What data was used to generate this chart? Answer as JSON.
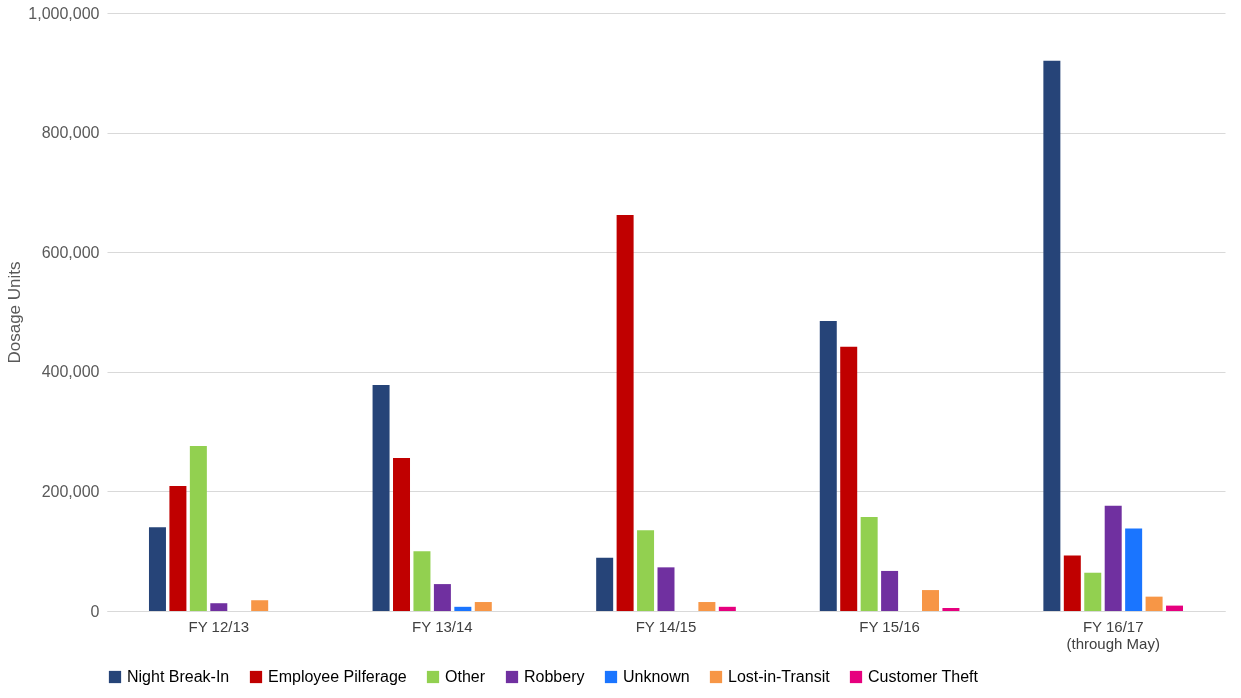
{
  "chart_data": {
    "type": "bar",
    "ylabel": "Dosage Units",
    "categories": [
      "FY 12/13",
      "FY 13/14",
      "FY 14/15",
      "FY 15/16",
      "FY 16/17\n(through May)"
    ],
    "series": [
      {
        "name": "Night Break-In",
        "color": "#264478",
        "values": [
          140000,
          378000,
          89000,
          485000,
          920000
        ]
      },
      {
        "name": "Employee Pilferage",
        "color": "#c00000",
        "values": [
          209000,
          256000,
          662000,
          442000,
          93000
        ]
      },
      {
        "name": "Other",
        "color": "#92d050",
        "values": [
          276000,
          100000,
          135000,
          157000,
          64000
        ]
      },
      {
        "name": "Robbery",
        "color": "#7030a0",
        "values": [
          13000,
          45000,
          73000,
          67000,
          176000
        ]
      },
      {
        "name": "Unknown",
        "color": "#1a75ff",
        "values": [
          null,
          7000,
          null,
          null,
          138000
        ]
      },
      {
        "name": "Lost-in-Transit",
        "color": "#f79646",
        "values": [
          18000,
          15000,
          15000,
          35000,
          24000
        ]
      },
      {
        "name": "Customer Theft",
        "color": "#e6007e",
        "values": [
          null,
          null,
          7000,
          5000,
          9000
        ]
      }
    ],
    "ylim": [
      0,
      1000000
    ],
    "yticks": [
      0,
      {
        "value": 200000,
        "label": "200,000"
      },
      {
        "value": 400000,
        "label": "400,000"
      },
      {
        "value": 600000,
        "label": "600,000"
      },
      {
        "value": 800000,
        "label": "800,000"
      },
      {
        "value": 1000000,
        "label": "1,000,000"
      }
    ],
    "grid": "y",
    "legend": "bottom"
  }
}
